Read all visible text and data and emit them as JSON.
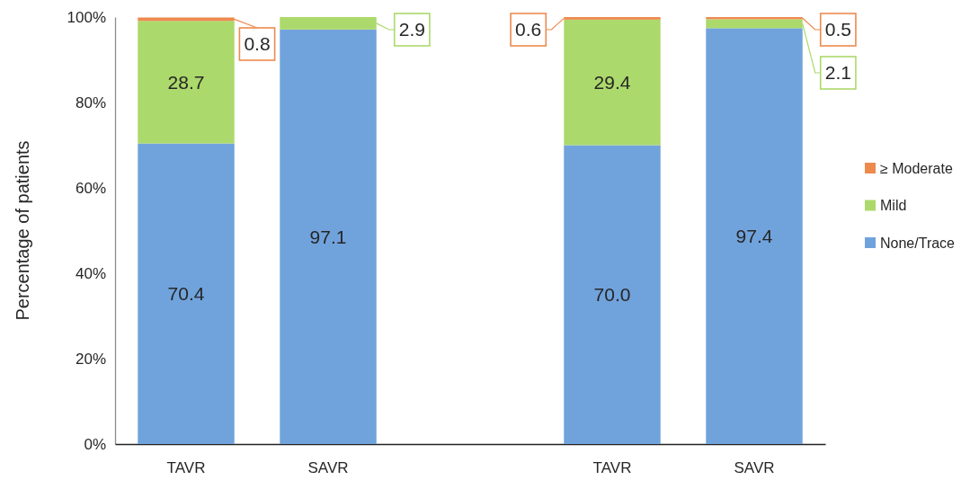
{
  "chart_data": {
    "type": "bar",
    "ylabel": "Percentage of patients",
    "categories": [
      "TAVR",
      "SAVR",
      null,
      "TAVR",
      "SAVR"
    ],
    "stacked": true,
    "series": [
      {
        "name": "None/Trace",
        "color": "#70a3dc",
        "values": [
          70.4,
          97.1,
          null,
          70.0,
          97.4
        ],
        "value_labels": [
          "70.4",
          "97.1",
          null,
          "70.0",
          "97.4"
        ]
      },
      {
        "name": "Mild",
        "color": "#acd96b",
        "values": [
          28.7,
          2.9,
          null,
          29.4,
          2.1
        ],
        "value_labels": [
          "28.7",
          "2.9",
          null,
          "29.4",
          "2.1"
        ]
      },
      {
        "name": "≥ Moderate",
        "color": "#ee8a4e",
        "values": [
          0.8,
          null,
          null,
          0.6,
          0.5
        ],
        "value_labels": [
          "0.8",
          null,
          null,
          "0.6",
          "0.5"
        ]
      }
    ],
    "ylim": [
      0,
      100
    ],
    "yticks": [
      {
        "value": 0,
        "label": "0%"
      },
      {
        "value": 20,
        "label": "20%"
      },
      {
        "value": 40,
        "label": "40%"
      },
      {
        "value": 60,
        "label": "60%"
      },
      {
        "value": 80,
        "label": "80%"
      },
      {
        "value": 100,
        "label": "100%"
      }
    ],
    "legend": "right"
  }
}
